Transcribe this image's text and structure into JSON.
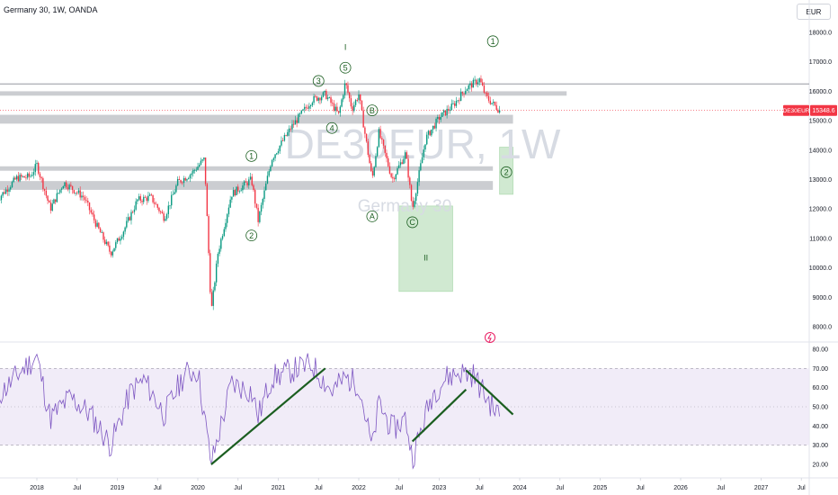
{
  "header": {
    "symbol_line": "Germany 30, 1W, OANDA",
    "currency": "EUR"
  },
  "watermark": {
    "ticker": "DE30EUR, 1W",
    "name": "Germany 30"
  },
  "price_tag": {
    "symbol": "DE30EUR",
    "value": "15348.6"
  },
  "colors": {
    "up": "#089981",
    "down": "#f23645",
    "rsi_line": "#7e57c2",
    "rsi_band": "#ede7f6",
    "zone": "#b9bcc2",
    "box": "#c8e6c9",
    "trend": "#1b5e20"
  },
  "chart_data": [
    {
      "type": "candlestick",
      "x_labels": [
        "2018",
        "Jul",
        "2019",
        "Jul",
        "2020",
        "Jul",
        "2021",
        "Jul",
        "2022",
        "Jul",
        "2023",
        "Jul",
        "2024",
        "Jul",
        "2025",
        "Jul",
        "2026",
        "Jul",
        "2027",
        "Jul"
      ],
      "price_ticks": [
        "18000.0",
        "17000.0",
        "16000.0",
        "15000.0",
        "14000.0",
        "13000.0",
        "12000.0",
        "11000.0",
        "10000.0",
        "9000.0",
        "8000.0"
      ],
      "ylim": [
        7500,
        18500
      ],
      "series": [
        {
          "name": "Germany 30",
          "points": [
            [
              "2017-07",
              12300
            ],
            [
              "2017-10",
              13050
            ],
            [
              "2017-12",
              13100
            ],
            [
              "2018-01",
              13500
            ],
            [
              "2018-03",
              12000
            ],
            [
              "2018-05",
              12900
            ],
            [
              "2018-08",
              12400
            ],
            [
              "2018-10",
              11400
            ],
            [
              "2018-12",
              10500
            ],
            [
              "2019-02",
              11300
            ],
            [
              "2019-04",
              12300
            ],
            [
              "2019-06",
              12400
            ],
            [
              "2019-08",
              11700
            ],
            [
              "2019-10",
              12900
            ],
            [
              "2019-12",
              13200
            ],
            [
              "2020-02",
              13700
            ],
            [
              "2020-03",
              8500
            ],
            [
              "2020-04",
              10500
            ],
            [
              "2020-06",
              12500
            ],
            [
              "2020-09",
              13000
            ],
            [
              "2020-10",
              11600
            ],
            [
              "2020-12",
              13700
            ],
            [
              "2021-03",
              14800
            ],
            [
              "2021-06",
              15700
            ],
            [
              "2021-08",
              15900
            ],
            [
              "2021-10",
              15200
            ],
            [
              "2021-11",
              16300
            ],
            [
              "2021-12",
              15400
            ],
            [
              "2022-01",
              15900
            ],
            [
              "2022-03",
              13000
            ],
            [
              "2022-04",
              14600
            ],
            [
              "2022-06",
              13000
            ],
            [
              "2022-08",
              13900
            ],
            [
              "2022-09",
              12000
            ],
            [
              "2022-11",
              14400
            ],
            [
              "2023-01",
              15100
            ],
            [
              "2023-03",
              15500
            ],
            [
              "2023-05",
              16100
            ],
            [
              "2023-07",
              16400
            ],
            [
              "2023-08",
              15800
            ],
            [
              "2023-10",
              15348.6
            ]
          ]
        }
      ],
      "zones": [
        {
          "from": "2017-07",
          "to": "2024-08",
          "low": 15850,
          "high": 16000
        },
        {
          "from": "2017-07",
          "to": "2023-12",
          "low": 14900,
          "high": 15200
        },
        {
          "from": "2017-07",
          "to": "2023-09",
          "low": 13300,
          "high": 13450
        },
        {
          "from": "2017-07",
          "to": "2023-09",
          "low": 12650,
          "high": 12950
        }
      ],
      "resistance_line": 16250,
      "boxes": [
        {
          "from": "2022-07",
          "to": "2023-03",
          "low": 9200,
          "high": 12100
        },
        {
          "from": "2023-10",
          "to": "2023-12",
          "low": 12500,
          "high": 14100
        }
      ],
      "wave_labels": [
        {
          "text": "1",
          "date": "2020-09",
          "price": 13800,
          "circled": true
        },
        {
          "text": "2",
          "date": "2020-09",
          "price": 11100,
          "circled": true
        },
        {
          "text": "3",
          "date": "2021-07",
          "price": 16350,
          "circled": true
        },
        {
          "text": "4",
          "date": "2021-09",
          "price": 14750,
          "circled": true
        },
        {
          "text": "5",
          "date": "2021-11",
          "price": 16800,
          "circled": true
        },
        {
          "text": "I",
          "date": "2021-11",
          "price": 17500,
          "circled": false
        },
        {
          "text": "B",
          "date": "2022-03",
          "price": 15350,
          "circled": true
        },
        {
          "text": "A",
          "date": "2022-03",
          "price": 11750,
          "circled": true
        },
        {
          "text": "C",
          "date": "2022-09",
          "price": 11550,
          "circled": true
        },
        {
          "text": "II",
          "date": "2022-11",
          "price": 10350,
          "circled": false
        },
        {
          "text": "1",
          "date": "2023-09",
          "price": 17700,
          "circled": true
        },
        {
          "text": "2",
          "date": "2023-11",
          "price": 13250,
          "circled": true
        }
      ]
    },
    {
      "type": "line",
      "ticks": [
        "80.00",
        "70.00",
        "60.00",
        "50.00",
        "40.00",
        "30.00",
        "20.00"
      ],
      "ylim": [
        17,
        82
      ],
      "band": [
        30,
        70
      ],
      "series": [
        {
          "name": "RSI",
          "points": [
            [
              "2017-07",
              55
            ],
            [
              "2017-09",
              62
            ],
            [
              "2017-11",
              70
            ],
            [
              "2018-01",
              76
            ],
            [
              "2018-03",
              44
            ],
            [
              "2018-06",
              55
            ],
            [
              "2018-09",
              46
            ],
            [
              "2018-12",
              30
            ],
            [
              "2019-03",
              58
            ],
            [
              "2019-05",
              64
            ],
            [
              "2019-08",
              46
            ],
            [
              "2019-11",
              67
            ],
            [
              "2020-01",
              69
            ],
            [
              "2020-03",
              20
            ],
            [
              "2020-06",
              62
            ],
            [
              "2020-09",
              58
            ],
            [
              "2020-10",
              45
            ],
            [
              "2020-12",
              65
            ],
            [
              "2021-03",
              69
            ],
            [
              "2021-06",
              72
            ],
            [
              "2021-09",
              58
            ],
            [
              "2021-11",
              65
            ],
            [
              "2022-01",
              62
            ],
            [
              "2022-03",
              28
            ],
            [
              "2022-04",
              52
            ],
            [
              "2022-06",
              38
            ],
            [
              "2022-08",
              44
            ],
            [
              "2022-09",
              23
            ],
            [
              "2022-12",
              57
            ],
            [
              "2023-02",
              65
            ],
            [
              "2023-04",
              68
            ],
            [
              "2023-06",
              67
            ],
            [
              "2023-08",
              55
            ],
            [
              "2023-10",
              45
            ]
          ]
        }
      ],
      "trendlines": [
        [
          [
            "2020-03",
            20
          ],
          [
            "2021-08",
            70
          ]
        ],
        [
          [
            "2022-09",
            32
          ],
          [
            "2023-05",
            59
          ]
        ],
        [
          [
            "2023-05",
            69
          ],
          [
            "2023-12",
            46
          ]
        ]
      ]
    }
  ]
}
